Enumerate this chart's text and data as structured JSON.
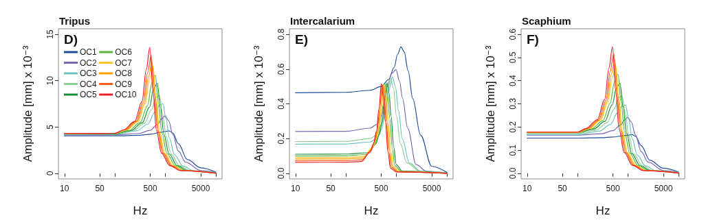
{
  "chart_data": [
    {
      "type": "line",
      "title": "Tripus",
      "xlabel": "Hz",
      "ylabel": "Amplitude [mm] x 10⁻³",
      "annotations": [
        "D)"
      ],
      "log": "x",
      "marker": "none",
      "legend": "top left",
      "xlim": [
        7.6,
        13200
      ],
      "xticks": [
        10,
        50,
        {
          "value": 100,
          "label": null
        },
        500,
        {
          "value": 1000,
          "label": null
        },
        5000,
        {
          "value": 10000,
          "label": null
        }
      ],
      "ylim": [
        -0.6,
        15.6
      ],
      "yticks": [
        0,
        5,
        10,
        15
      ],
      "series": [
        {
          "name": "OC1",
          "color": "#1f4e99",
          "x": [
            10,
            100,
            300,
            500,
            800,
            1000,
            1190,
            1400,
            1800,
            2700,
            5000,
            10000
          ],
          "values": [
            4.05,
            4.05,
            4.1,
            4.22,
            4.42,
            4.52,
            4.57,
            4.35,
            3.2,
            1.5,
            0.6,
            0.12
          ]
        },
        {
          "name": "OC2",
          "color": "#7b68b5",
          "x": [
            10,
            100,
            300,
            500,
            700,
            850,
            980,
            1150,
            1400,
            1800,
            2500,
            5000,
            10000
          ],
          "values": [
            4.15,
            4.16,
            4.3,
            4.65,
            5.3,
            5.9,
            6.2,
            5.7,
            4.2,
            2.4,
            1.2,
            0.3,
            0.07
          ]
        },
        {
          "name": "OC3",
          "color": "#6cc5c0",
          "x": [
            10,
            100,
            270,
            445,
            620,
            760,
            890,
            1020,
            1200,
            1510,
            2220,
            3560,
            10000
          ],
          "values": [
            4.2,
            4.21,
            4.58,
            5.3,
            6.6,
            7.35,
            7.5,
            5.9,
            3.77,
            1.99,
            0.8,
            0.28,
            0.03
          ]
        },
        {
          "name": "OC4",
          "color": "#8fcf8f",
          "x": [
            10,
            100,
            228,
            380,
            532,
            646,
            760,
            874,
            1026,
            1292,
            1900,
            3040,
            10000
          ],
          "values": [
            4.25,
            4.26,
            4.61,
            5.38,
            6.87,
            8.2,
            8.4,
            6.45,
            3.99,
            2.05,
            0.81,
            0.28,
            0.02
          ]
        },
        {
          "name": "OC5",
          "color": "#1a8a3a",
          "x": [
            10,
            100,
            207,
            345,
            483,
            587,
            690,
            794,
            932,
            1173,
            1725,
            2760,
            10000
          ],
          "values": [
            4.25,
            4.26,
            4.63,
            5.44,
            7.16,
            9.2,
            9.7,
            7.14,
            4.2,
            2.1,
            0.81,
            0.28,
            0.02
          ]
        },
        {
          "name": "OC6",
          "color": "#5bb53f",
          "x": [
            10,
            100,
            189,
            315,
            441,
            536,
            630,
            725,
            851,
            1071,
            1575,
            2520,
            10000
          ],
          "values": [
            4.25,
            4.27,
            4.63,
            5.48,
            7.31,
            9.69,
            10.6,
            7.57,
            4.32,
            2.12,
            0.81,
            0.28,
            0.02
          ]
        },
        {
          "name": "OC7",
          "color": "#ffc425",
          "x": [
            10,
            100,
            171,
            285,
            399,
            485,
            570,
            656,
            770,
            969,
            1425,
            2280,
            10000
          ],
          "values": [
            4.3,
            4.32,
            4.69,
            5.57,
            7.52,
            10.25,
            11.5,
            8.05,
            4.47,
            2.15,
            0.82,
            0.29,
            0.01
          ]
        },
        {
          "name": "OC8",
          "color": "#ffa000",
          "x": [
            10,
            100,
            164,
            273,
            382,
            463,
            545,
            627,
            736,
            927,
            1363,
            2180,
            10000
          ],
          "values": [
            4.3,
            4.32,
            4.69,
            5.58,
            7.57,
            10.45,
            12.0,
            8.23,
            4.51,
            2.16,
            0.82,
            0.29,
            0.01
          ]
        },
        {
          "name": "OC9",
          "color": "#ff5a1f",
          "x": [
            10,
            100,
            156,
            260,
            364,
            442,
            520,
            598,
            702,
            884,
            1300,
            2080,
            10000
          ],
          "values": [
            4.3,
            4.32,
            4.69,
            5.6,
            7.67,
            10.84,
            12.7,
            8.58,
            4.58,
            2.18,
            0.82,
            0.29,
            0.01
          ]
        },
        {
          "name": "OC10",
          "color": "#e8202a",
          "x": [
            10,
            100,
            147,
            245,
            343,
            417,
            490,
            564,
            662,
            833,
            1225,
            1960,
            10000
          ],
          "values": [
            4.3,
            4.32,
            4.69,
            5.61,
            7.75,
            11.19,
            13.6,
            8.91,
            4.65,
            2.19,
            0.82,
            0.29,
            0.01
          ]
        }
      ]
    },
    {
      "type": "line",
      "title": "Intercalarium",
      "xlabel": "Hz",
      "ylabel": "Amplitude [mm] x 10⁻³",
      "annotations": [
        "E)"
      ],
      "log": "x",
      "marker": "none",
      "xlim": [
        7.6,
        13200
      ],
      "xticks": [
        10,
        50,
        {
          "value": 100,
          "label": null
        },
        500,
        {
          "value": 1000,
          "label": null
        },
        5000,
        {
          "value": 10000,
          "label": null
        }
      ],
      "ylim": [
        -0.032,
        0.832
      ],
      "yticks": [
        {
          "value": 0,
          "label": "0.0"
        },
        0.2,
        0.4,
        0.6,
        0.8
      ],
      "series": [
        {
          "color": "#1f4e99",
          "x": [
            10,
            100,
            300,
            500,
            700,
            900,
            1050,
            1230,
            1420,
            1700,
            2100,
            3000,
            5000,
            10000
          ],
          "values": [
            0.464,
            0.466,
            0.478,
            0.5,
            0.54,
            0.61,
            0.685,
            0.728,
            0.7,
            0.59,
            0.43,
            0.22,
            0.04,
            0.005
          ]
        },
        {
          "color": "#7b68b5",
          "x": [
            10,
            100,
            300,
            400,
            500,
            660,
            800,
            980,
            1150,
            1323,
            1666,
            2450,
            3920,
            10000
          ],
          "values": [
            0.241,
            0.242,
            0.26,
            0.28,
            0.33,
            0.5,
            0.575,
            0.597,
            0.53,
            0.43,
            0.26,
            0.05,
            0.012,
            0.002
          ]
        },
        {
          "color": "#6cc5c0",
          "x": [
            10,
            100,
            300,
            400,
            500,
            600,
            700,
            830,
            950,
            1100,
            1300,
            1800,
            3000,
            10000
          ],
          "values": [
            0.168,
            0.169,
            0.18,
            0.2,
            0.25,
            0.34,
            0.47,
            0.555,
            0.5,
            0.36,
            0.2,
            0.06,
            0.012,
            0.001
          ]
        },
        {
          "color": "#8fcf8f",
          "x": [
            10,
            100,
            300,
            400,
            500,
            600,
            680,
            760,
            870,
            1000,
            1200,
            1600,
            3000,
            10000
          ],
          "values": [
            0.183,
            0.184,
            0.2,
            0.22,
            0.28,
            0.38,
            0.48,
            0.55,
            0.49,
            0.33,
            0.17,
            0.06,
            0.01,
            0.001
          ]
        },
        {
          "color": "#1a8a3a",
          "x": [
            10,
            100,
            260,
            390,
            455,
            520,
            585,
            650,
            715,
            780,
            884,
            988,
            1300,
            10000
          ],
          "values": [
            0.11,
            0.111,
            0.118,
            0.17,
            0.22,
            0.29,
            0.41,
            0.522,
            0.46,
            0.33,
            0.15,
            0.05,
            0.013,
            0
          ]
        },
        {
          "color": "#5bb53f",
          "x": [
            10,
            100,
            244,
            366,
            427,
            488,
            549,
            610,
            671,
            732,
            830,
            927,
            1220,
            10000
          ],
          "values": [
            0.1,
            0.101,
            0.108,
            0.16,
            0.21,
            0.28,
            0.4,
            0.515,
            0.45,
            0.32,
            0.14,
            0.045,
            0.012,
            0
          ]
        },
        {
          "color": "#ffc425",
          "x": [
            10,
            100,
            228,
            342,
            399,
            456,
            513,
            570,
            627,
            684,
            775,
            866,
            1140,
            10000
          ],
          "values": [
            0.09,
            0.091,
            0.097,
            0.15,
            0.2,
            0.27,
            0.39,
            0.51,
            0.44,
            0.31,
            0.13,
            0.04,
            0.01,
            0
          ]
        },
        {
          "color": "#ffa000",
          "x": [
            10,
            100,
            218,
            327,
            382,
            436,
            490,
            545,
            600,
            654,
            741,
            828,
            1090,
            10000
          ],
          "values": [
            0.082,
            0.083,
            0.088,
            0.14,
            0.19,
            0.26,
            0.38,
            0.51,
            0.44,
            0.3,
            0.12,
            0.035,
            0.01,
            0
          ]
        },
        {
          "color": "#ff5a1f",
          "x": [
            10,
            100,
            208,
            312,
            364,
            416,
            468,
            520,
            572,
            624,
            707,
            790,
            1040,
            10000
          ],
          "values": [
            0.072,
            0.073,
            0.078,
            0.13,
            0.18,
            0.25,
            0.38,
            0.51,
            0.44,
            0.3,
            0.12,
            0.035,
            0.009,
            0
          ]
        },
        {
          "color": "#e8202a",
          "x": [
            10,
            100,
            200,
            300,
            350,
            400,
            450,
            500,
            550,
            600,
            680,
            760,
            1000,
            10000
          ],
          "values": [
            0.063,
            0.064,
            0.068,
            0.12,
            0.17,
            0.24,
            0.37,
            0.514,
            0.44,
            0.3,
            0.12,
            0.03,
            0.008,
            0
          ]
        }
      ]
    },
    {
      "type": "line",
      "title": "Scaphium",
      "xlabel": "Hz",
      "ylabel": "Amplitude [mm] x 10⁻³",
      "annotations": [
        "F)"
      ],
      "log": "x",
      "marker": "none",
      "xlim": [
        7.6,
        13200
      ],
      "xticks": [
        10,
        50,
        {
          "value": 100,
          "label": null
        },
        500,
        {
          "value": 1000,
          "label": null
        },
        5000,
        {
          "value": 10000,
          "label": null
        }
      ],
      "ylim": [
        -0.024,
        0.624
      ],
      "yticks": [
        {
          "value": 0,
          "label": "0.0"
        },
        0.1,
        0.2,
        0.3,
        0.4,
        0.5,
        0.6
      ],
      "series": [
        {
          "color": "#1f4e99",
          "x": [
            10,
            100,
            300,
            500,
            800,
            1000,
            1190,
            1400,
            1800,
            2700,
            5000,
            10000
          ],
          "values": [
            0.152,
            0.152,
            0.154,
            0.157,
            0.162,
            0.165,
            0.167,
            0.16,
            0.12,
            0.056,
            0.022,
            0.005
          ]
        },
        {
          "color": "#7b68b5",
          "x": [
            10,
            100,
            300,
            500,
            700,
            850,
            980,
            1150,
            1400,
            1800,
            2500,
            5000,
            10000
          ],
          "values": [
            0.165,
            0.165,
            0.171,
            0.184,
            0.208,
            0.23,
            0.242,
            0.222,
            0.165,
            0.095,
            0.048,
            0.012,
            0.003
          ]
        },
        {
          "color": "#6cc5c0",
          "x": [
            10,
            100,
            270,
            445,
            620,
            760,
            890,
            1020,
            1200,
            1510,
            2220,
            3560,
            10000
          ],
          "values": [
            0.167,
            0.167,
            0.182,
            0.211,
            0.262,
            0.289,
            0.295,
            0.235,
            0.15,
            0.079,
            0.032,
            0.011,
            0.001
          ]
        },
        {
          "color": "#8fcf8f",
          "x": [
            10,
            100,
            228,
            380,
            532,
            646,
            760,
            874,
            1026,
            1292,
            1900,
            3040,
            10000
          ],
          "values": [
            0.172,
            0.172,
            0.186,
            0.218,
            0.278,
            0.328,
            0.334,
            0.261,
            0.162,
            0.083,
            0.033,
            0.012,
            0.001
          ]
        },
        {
          "color": "#1a8a3a",
          "x": [
            10,
            100,
            207,
            345,
            483,
            587,
            690,
            794,
            932,
            1173,
            1725,
            2760,
            10000
          ],
          "values": [
            0.175,
            0.175,
            0.191,
            0.224,
            0.295,
            0.37,
            0.388,
            0.287,
            0.173,
            0.086,
            0.033,
            0.012,
            0.001
          ]
        },
        {
          "color": "#5bb53f",
          "x": [
            10,
            100,
            189,
            315,
            441,
            536,
            630,
            725,
            851,
            1071,
            1575,
            2520,
            10000
          ],
          "values": [
            0.176,
            0.176,
            0.192,
            0.227,
            0.303,
            0.394,
            0.428,
            0.307,
            0.179,
            0.088,
            0.033,
            0.012,
            0.001
          ]
        },
        {
          "color": "#ffc425",
          "x": [
            10,
            100,
            171,
            285,
            399,
            485,
            570,
            656,
            770,
            969,
            1425,
            2280,
            10000
          ],
          "values": [
            0.177,
            0.177,
            0.193,
            0.229,
            0.309,
            0.414,
            0.462,
            0.324,
            0.184,
            0.089,
            0.034,
            0.012,
            0.001
          ]
        },
        {
          "color": "#ffa000",
          "x": [
            10,
            100,
            164,
            273,
            382,
            463,
            545,
            627,
            736,
            927,
            1363,
            2180,
            10000
          ],
          "values": [
            0.177,
            0.177,
            0.193,
            0.23,
            0.312,
            0.428,
            0.49,
            0.337,
            0.186,
            0.089,
            0.034,
            0.012,
            0.001
          ]
        },
        {
          "color": "#ff5a1f",
          "x": [
            10,
            100,
            156,
            260,
            364,
            442,
            520,
            598,
            702,
            884,
            1300,
            2080,
            10000
          ],
          "values": [
            0.178,
            0.178,
            0.194,
            0.231,
            0.316,
            0.441,
            0.516,
            0.349,
            0.189,
            0.09,
            0.034,
            0.012,
            0.001
          ]
        },
        {
          "color": "#e8202a",
          "x": [
            10,
            100,
            147,
            245,
            343,
            417,
            490,
            564,
            662,
            833,
            1225,
            1960,
            10000
          ],
          "values": [
            0.178,
            0.178,
            0.194,
            0.232,
            0.319,
            0.454,
            0.546,
            0.36,
            0.19,
            0.09,
            0.034,
            0.012,
            0.001
          ]
        }
      ]
    }
  ]
}
